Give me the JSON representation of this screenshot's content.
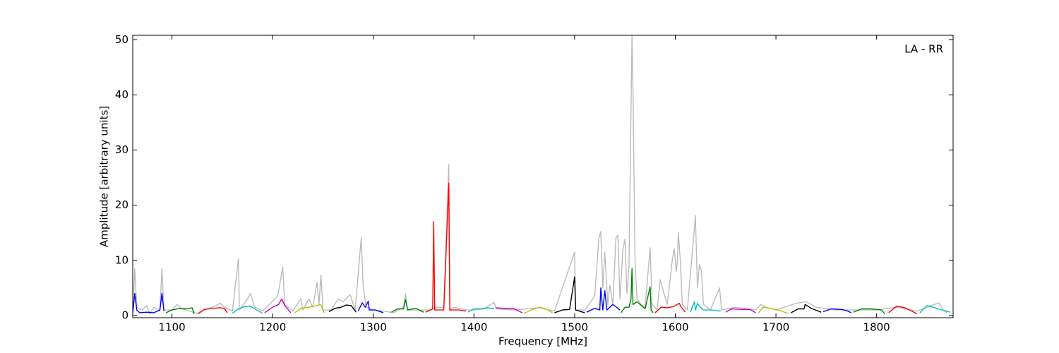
{
  "chart_data": {
    "type": "line",
    "x_label": "Frequency [MHz]",
    "y_label": "Amplitude [arbitrary units]",
    "annotation": "LA - RR",
    "xlim": [
      1061,
      1876
    ],
    "ylim": [
      -0.4,
      50.8
    ],
    "xticks": [
      1100,
      1200,
      1300,
      1400,
      1500,
      1600,
      1700,
      1800
    ],
    "yticks": [
      0,
      10,
      20,
      30,
      40,
      50
    ],
    "series": [
      {
        "color": "#bbbbbb",
        "x": [
          1061,
          1063,
          1065,
          1070,
          1075,
          1078,
          1082,
          1088,
          1090,
          1092,
          1100,
          1105,
          1110,
          1125,
          1140,
          1148,
          1152,
          1160,
          1166,
          1167,
          1175,
          1178,
          1182,
          1190,
          1205,
          1207,
          1210,
          1212,
          1220,
          1228,
          1230,
          1236,
          1240,
          1244,
          1246,
          1248,
          1250,
          1258,
          1265,
          1270,
          1277,
          1282,
          1288,
          1290,
          1293,
          1300,
          1310,
          1320,
          1330,
          1332,
          1334,
          1350,
          1358,
          1362,
          1370,
          1375,
          1376,
          1380,
          1392,
          1400,
          1410,
          1420,
          1422,
          1440,
          1465,
          1480,
          1500,
          1501,
          1510,
          1520,
          1524,
          1526,
          1528,
          1530,
          1533,
          1535,
          1538,
          1541,
          1543,
          1545,
          1548,
          1550,
          1552,
          1554,
          1557,
          1558,
          1560,
          1562,
          1566,
          1570,
          1575,
          1577,
          1582,
          1585,
          1588,
          1592,
          1597,
          1599,
          1601,
          1602,
          1603,
          1605,
          1607,
          1612,
          1618,
          1620,
          1622,
          1624,
          1626,
          1628,
          1635,
          1644,
          1646,
          1660,
          1680,
          1685,
          1690,
          1700,
          1720,
          1730,
          1740,
          1760,
          1780,
          1800,
          1820,
          1840,
          1862,
          1866,
          1870
        ],
        "values": [
          0.5,
          8.5,
          1.5,
          1,
          1.8,
          0.3,
          1.5,
          1,
          8.5,
          1,
          1,
          2,
          1.2,
          0.4,
          1.5,
          2.2,
          1.5,
          0.8,
          10.3,
          1,
          3,
          4,
          1.5,
          0.8,
          3.5,
          5.5,
          8.8,
          2,
          0.8,
          3,
          1,
          3,
          1.5,
          6,
          2,
          7.3,
          1,
          1,
          3,
          2.5,
          3.8,
          1,
          14.1,
          5,
          1.5,
          1,
          0.8,
          0.5,
          1.5,
          4,
          1,
          1,
          1,
          1.5,
          1.5,
          27.4,
          1,
          1.5,
          1,
          1,
          1.2,
          2.4,
          1.2,
          1,
          1.4,
          0.8,
          11.5,
          1,
          1,
          3.5,
          14,
          15.2,
          5,
          11.5,
          2,
          5.5,
          2,
          14,
          14.6,
          3,
          12,
          13.8,
          4,
          9,
          50.8,
          41,
          10,
          3,
          2,
          1.5,
          12.3,
          2,
          1,
          6.5,
          4.5,
          2,
          10,
          12.1,
          8,
          9.5,
          15,
          10,
          2,
          1,
          13.8,
          18.1,
          5,
          9.2,
          8,
          2,
          1,
          5,
          1,
          1.5,
          1,
          2,
          1.5,
          1,
          2.2,
          2.5,
          1.5,
          1,
          1,
          1,
          1.5,
          0.8,
          2.3,
          1,
          0.5
        ]
      },
      {
        "color": "#0000ff",
        "x": [
          1061,
          1063,
          1065,
          1068,
          1075,
          1082,
          1088,
          1090,
          1092
        ],
        "values": [
          0.3,
          4,
          1,
          0.5,
          0.6,
          0.5,
          1,
          4,
          0.8
        ]
      },
      {
        "color": "#008000",
        "x": [
          1094,
          1100,
          1108,
          1115,
          1120,
          1122
        ],
        "values": [
          0.5,
          1,
          1.3,
          1.2,
          1.4,
          0.3
        ]
      },
      {
        "color": "#ff0000",
        "x": [
          1126,
          1132,
          1140,
          1148,
          1152,
          1155
        ],
        "values": [
          0.3,
          1.1,
          1.3,
          1.4,
          1.3,
          0.5
        ]
      },
      {
        "color": "#00bfbf",
        "x": [
          1160,
          1166,
          1172,
          1178,
          1184,
          1190
        ],
        "values": [
          0.4,
          1.2,
          1.6,
          1.7,
          1,
          0.4
        ]
      },
      {
        "color": "#bf00bf",
        "x": [
          1192,
          1200,
          1206,
          1209,
          1212,
          1218
        ],
        "values": [
          0.5,
          1.5,
          2,
          3,
          1.8,
          0.5
        ]
      },
      {
        "color": "#bfbf00",
        "x": [
          1222,
          1228,
          1236,
          1244,
          1248,
          1251
        ],
        "values": [
          0.5,
          1.3,
          1.5,
          1.8,
          2,
          0.5
        ]
      },
      {
        "color": "#000000",
        "x": [
          1256,
          1262,
          1268,
          1273,
          1278,
          1283
        ],
        "values": [
          0.7,
          1.3,
          1.5,
          1.9,
          1.8,
          0.6
        ]
      },
      {
        "color": "#0000ff",
        "x": [
          1285,
          1289,
          1292,
          1295,
          1296,
          1302,
          1310
        ],
        "values": [
          0.8,
          2.3,
          1.5,
          2.6,
          1,
          1,
          0.5
        ]
      },
      {
        "color": "#008000",
        "x": [
          1318,
          1324,
          1330,
          1332,
          1334,
          1342,
          1350
        ],
        "values": [
          0.6,
          1.2,
          1.2,
          2.9,
          1,
          1.3,
          0.6
        ]
      },
      {
        "color": "#ff0000",
        "x": [
          1352,
          1359,
          1360,
          1361,
          1370,
          1375,
          1376,
          1385,
          1392
        ],
        "values": [
          0.6,
          1.2,
          17,
          1,
          1,
          24,
          1,
          1,
          0.8
        ]
      },
      {
        "color": "#00bfbf",
        "x": [
          1394,
          1400,
          1406,
          1414,
          1420
        ],
        "values": [
          0.6,
          1.2,
          1.2,
          1.4,
          1.2
        ]
      },
      {
        "color": "#bf00bf",
        "x": [
          1422,
          1430,
          1440,
          1448
        ],
        "values": [
          1.4,
          1.3,
          1.2,
          0.5
        ]
      },
      {
        "color": "#bfbf00",
        "x": [
          1450,
          1458,
          1465,
          1472,
          1478
        ],
        "values": [
          0.4,
          1.1,
          1.5,
          1.2,
          0.5
        ]
      },
      {
        "color": "#000000",
        "x": [
          1480,
          1488,
          1495,
          1500,
          1501,
          1510
        ],
        "values": [
          0.5,
          1,
          1.1,
          7,
          1,
          0.5
        ]
      },
      {
        "color": "#0000ff",
        "x": [
          1512,
          1520,
          1525,
          1526,
          1528,
          1530,
          1532,
          1538,
          1545
        ],
        "values": [
          0.6,
          1.3,
          1,
          5,
          1,
          4.5,
          1,
          2,
          1
        ]
      },
      {
        "color": "#008000",
        "x": [
          1546,
          1550,
          1554,
          1556,
          1557,
          1558,
          1562,
          1570,
          1575,
          1576,
          1578
        ],
        "values": [
          0.5,
          1.5,
          1.5,
          3,
          8.5,
          2,
          2.5,
          1.2,
          5.2,
          1,
          0.5
        ]
      },
      {
        "color": "#ff0000",
        "x": [
          1580,
          1586,
          1592,
          1598,
          1604,
          1606,
          1610
        ],
        "values": [
          0.5,
          1.5,
          1.4,
          1.6,
          2.2,
          1.5,
          0.6
        ]
      },
      {
        "color": "#00bfbf",
        "x": [
          1615,
          1619,
          1620,
          1622,
          1625,
          1628,
          1636,
          1645
        ],
        "values": [
          0.6,
          2.5,
          1,
          2.2,
          1.5,
          1,
          1,
          0.8
        ]
      },
      {
        "color": "#bf00bf",
        "x": [
          1650,
          1656,
          1666,
          1674,
          1680
        ],
        "values": [
          0.6,
          1.2,
          1.1,
          1.1,
          0.5
        ]
      },
      {
        "color": "#bfbf00",
        "x": [
          1683,
          1687,
          1694,
          1702,
          1712
        ],
        "values": [
          0.5,
          1.5,
          1.3,
          1,
          0.4
        ]
      },
      {
        "color": "#000000",
        "x": [
          1715,
          1722,
          1728,
          1729,
          1735,
          1745
        ],
        "values": [
          0.5,
          1.2,
          1.2,
          2,
          1.3,
          0.6
        ]
      },
      {
        "color": "#0000ff",
        "x": [
          1747,
          1755,
          1765,
          1770,
          1775
        ],
        "values": [
          0.7,
          1.2,
          1.1,
          0.9,
          0.5
        ]
      },
      {
        "color": "#008000",
        "x": [
          1777,
          1785,
          1795,
          1805,
          1808
        ],
        "values": [
          0.6,
          1.2,
          1.2,
          1,
          0.3
        ]
      },
      {
        "color": "#ff0000",
        "x": [
          1812,
          1820,
          1828,
          1835,
          1840
        ],
        "values": [
          0.5,
          1.7,
          1.4,
          0.8,
          0.3
        ]
      },
      {
        "color": "#00bfbf",
        "x": [
          1843,
          1850,
          1858,
          1865,
          1873
        ],
        "values": [
          0.5,
          1.8,
          1.4,
          1,
          0.6
        ]
      }
    ]
  }
}
